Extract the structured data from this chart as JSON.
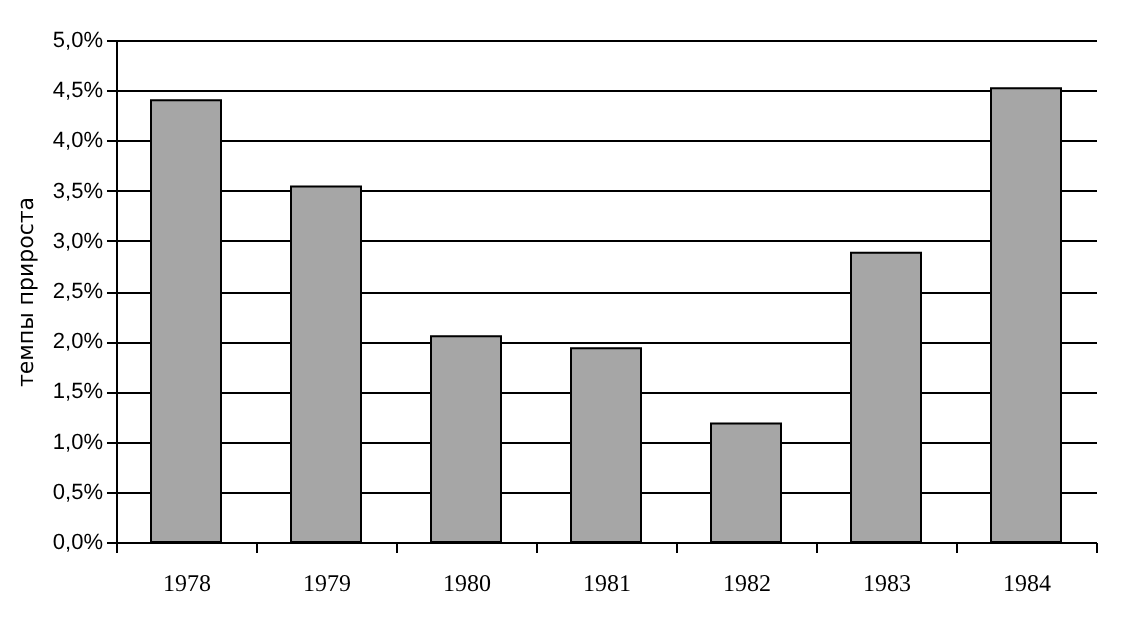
{
  "chart_data": {
    "type": "bar",
    "ylabel": "темпы прироста",
    "categories": [
      "1978",
      "1979",
      "1980",
      "1981",
      "1982",
      "1983",
      "1984"
    ],
    "values": [
      4.4,
      3.54,
      2.05,
      1.93,
      1.18,
      2.88,
      4.52
    ],
    "color": "#a6a6a6",
    "ylim": [
      0,
      5
    ],
    "yticks": [
      {
        "value": 0,
        "label": "0,0%"
      },
      {
        "value": 0.5,
        "label": "0,5%"
      },
      {
        "value": 1,
        "label": "1,0%"
      },
      {
        "value": 1.5,
        "label": "1,5%"
      },
      {
        "value": 2,
        "label": "2,0%"
      },
      {
        "value": 2.5,
        "label": "2,5%"
      },
      {
        "value": 3,
        "label": "3,0%"
      },
      {
        "value": 3.5,
        "label": "3,5%"
      },
      {
        "value": 4,
        "label": "4,0%"
      },
      {
        "value": 4.5,
        "label": "4,5%"
      },
      {
        "value": 5,
        "label": "5,0%"
      }
    ],
    "grid": "y"
  }
}
